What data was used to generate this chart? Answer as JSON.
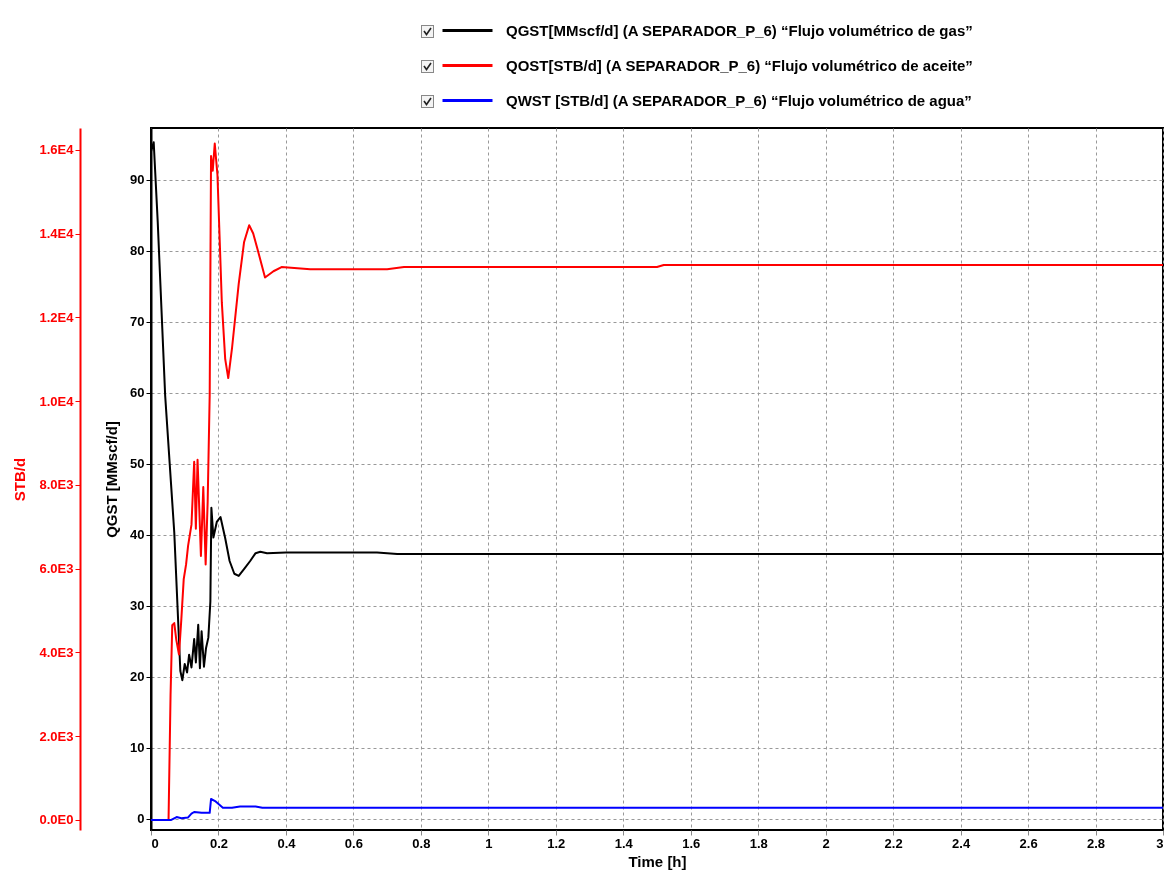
{
  "chart_data": {
    "type": "line",
    "xlabel": "Time [h]",
    "ylabel": "QGST [MMscf/d]",
    "y2label": "STB/d",
    "xlim": [
      0,
      3
    ],
    "xticks": [
      0,
      0.2,
      0.4,
      0.6,
      0.8,
      1,
      1.2,
      1.4,
      1.6,
      1.8,
      2,
      2.2,
      2.4,
      2.6,
      2.8,
      3
    ],
    "ylim": [
      -1.6,
      97.3
    ],
    "yticks": [
      0,
      10,
      20,
      30,
      40,
      50,
      60,
      70,
      80,
      90
    ],
    "y2lim": [
      -240,
      16520
    ],
    "y2ticks": [
      {
        "value": 0,
        "label": "0.0E0"
      },
      {
        "value": 2000,
        "label": "2.0E3"
      },
      {
        "value": 4000,
        "label": "4.0E3"
      },
      {
        "value": 6000,
        "label": "6.0E3"
      },
      {
        "value": 8000,
        "label": "8.0E3"
      },
      {
        "value": 10000,
        "label": "1.0E4"
      },
      {
        "value": 12000,
        "label": "1.2E4"
      },
      {
        "value": 14000,
        "label": "1.4E4"
      },
      {
        "value": 16000,
        "label": "1.6E4"
      }
    ],
    "grid": true,
    "legend": "top",
    "series": [
      {
        "name": "QGST[MMscf/d] (A SEPARADOR_P_6) “Flujo volumétrico de gas”",
        "color": "#000000",
        "x": [
          0,
          0.008,
          0.02,
          0.042,
          0.069,
          0.087,
          0.093,
          0.1,
          0.107,
          0.113,
          0.12,
          0.128,
          0.133,
          0.14,
          0.145,
          0.15,
          0.157,
          0.163,
          0.17,
          0.176,
          0.179,
          0.185,
          0.195,
          0.206,
          0.22,
          0.233,
          0.247,
          0.26,
          0.278,
          0.294,
          0.31,
          0.324,
          0.344,
          0.4,
          0.67,
          0.73,
          3
        ],
        "values": [
          94,
          95.3,
          84,
          59.6,
          40.3,
          20.8,
          19.5,
          21.8,
          20.6,
          23.1,
          21.3,
          25.3,
          22,
          27.3,
          21.2,
          26.4,
          21.4,
          24,
          25.5,
          30.6,
          43.8,
          39.6,
          41.8,
          42.5,
          39.5,
          36.3,
          34.5,
          34.2,
          35.3,
          36.3,
          37.4,
          37.6,
          37.4,
          37.5,
          37.5,
          37.3,
          37.3
        ]
      },
      {
        "name": "QOST[STB/d] (A SEPARADOR_P_6) “Flujo volumétrico de aceite”",
        "color": "#ff0000",
        "axis": "y2",
        "x": [
          0,
          0.052,
          0.058,
          0.063,
          0.069,
          0.075,
          0.083,
          0.09,
          0.097,
          0.104,
          0.11,
          0.115,
          0.12,
          0.128,
          0.133,
          0.138,
          0.148,
          0.155,
          0.162,
          0.168,
          0.174,
          0.178,
          0.183,
          0.189,
          0.197,
          0.21,
          0.22,
          0.229,
          0.24,
          0.26,
          0.276,
          0.291,
          0.303,
          0.315,
          0.338,
          0.363,
          0.387,
          0.472,
          0.7,
          0.75,
          1.5,
          1.52,
          3
        ],
        "values": [
          0,
          0,
          3000,
          4650,
          4700,
          4300,
          3950,
          4800,
          5750,
          6100,
          6550,
          6800,
          7050,
          8550,
          6950,
          8600,
          6300,
          7950,
          6100,
          7600,
          10150,
          15850,
          15500,
          16150,
          15400,
          12350,
          11000,
          10550,
          11250,
          12800,
          13800,
          14200,
          14000,
          13650,
          12950,
          13100,
          13200,
          13150,
          13150,
          13200,
          13200,
          13250,
          13250
        ]
      },
      {
        "name": "QWST [STB/d] (A SEPARADOR_P_6) “Flujo volumétrico de agua”",
        "color": "#0000ff",
        "axis": "y2",
        "x": [
          0,
          0.06,
          0.076,
          0.09,
          0.11,
          0.12,
          0.128,
          0.15,
          0.174,
          0.178,
          0.19,
          0.213,
          0.24,
          0.264,
          0.31,
          0.33,
          3
        ],
        "values": [
          0,
          0,
          70,
          40,
          60,
          150,
          190,
          170,
          170,
          500,
          450,
          290,
          290,
          320,
          320,
          290,
          290
        ]
      }
    ]
  }
}
